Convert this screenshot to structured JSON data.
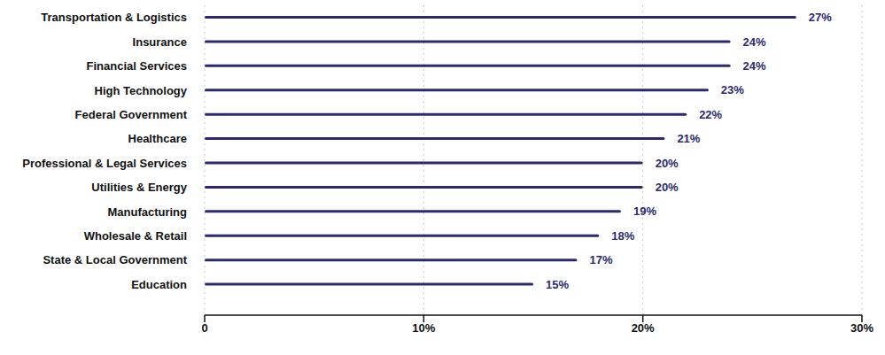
{
  "chart_data": {
    "type": "bar",
    "orientation": "horizontal",
    "categories": [
      "Transportation & Logistics",
      "Insurance",
      "Financial Services",
      "High Technology",
      "Federal Government",
      "Healthcare",
      "Professional & Legal Services",
      "Utilities & Energy",
      "Manufacturing",
      "Wholesale & Retail",
      "State & Local Government",
      "Education"
    ],
    "values": [
      27,
      24,
      24,
      23,
      22,
      21,
      20,
      20,
      19,
      18,
      17,
      15
    ],
    "value_labels": [
      "27%",
      "24%",
      "24%",
      "23%",
      "22%",
      "21%",
      "20%",
      "20%",
      "19%",
      "18%",
      "17%",
      "15%"
    ],
    "color": "#2b2a6e",
    "xlim": [
      0,
      30
    ],
    "xticks": [
      0,
      {
        "value": 10,
        "label": "10%"
      },
      {
        "value": 20,
        "label": "20%"
      },
      {
        "value": 30,
        "label": "30%"
      }
    ],
    "grid": true,
    "data_labels": true
  }
}
